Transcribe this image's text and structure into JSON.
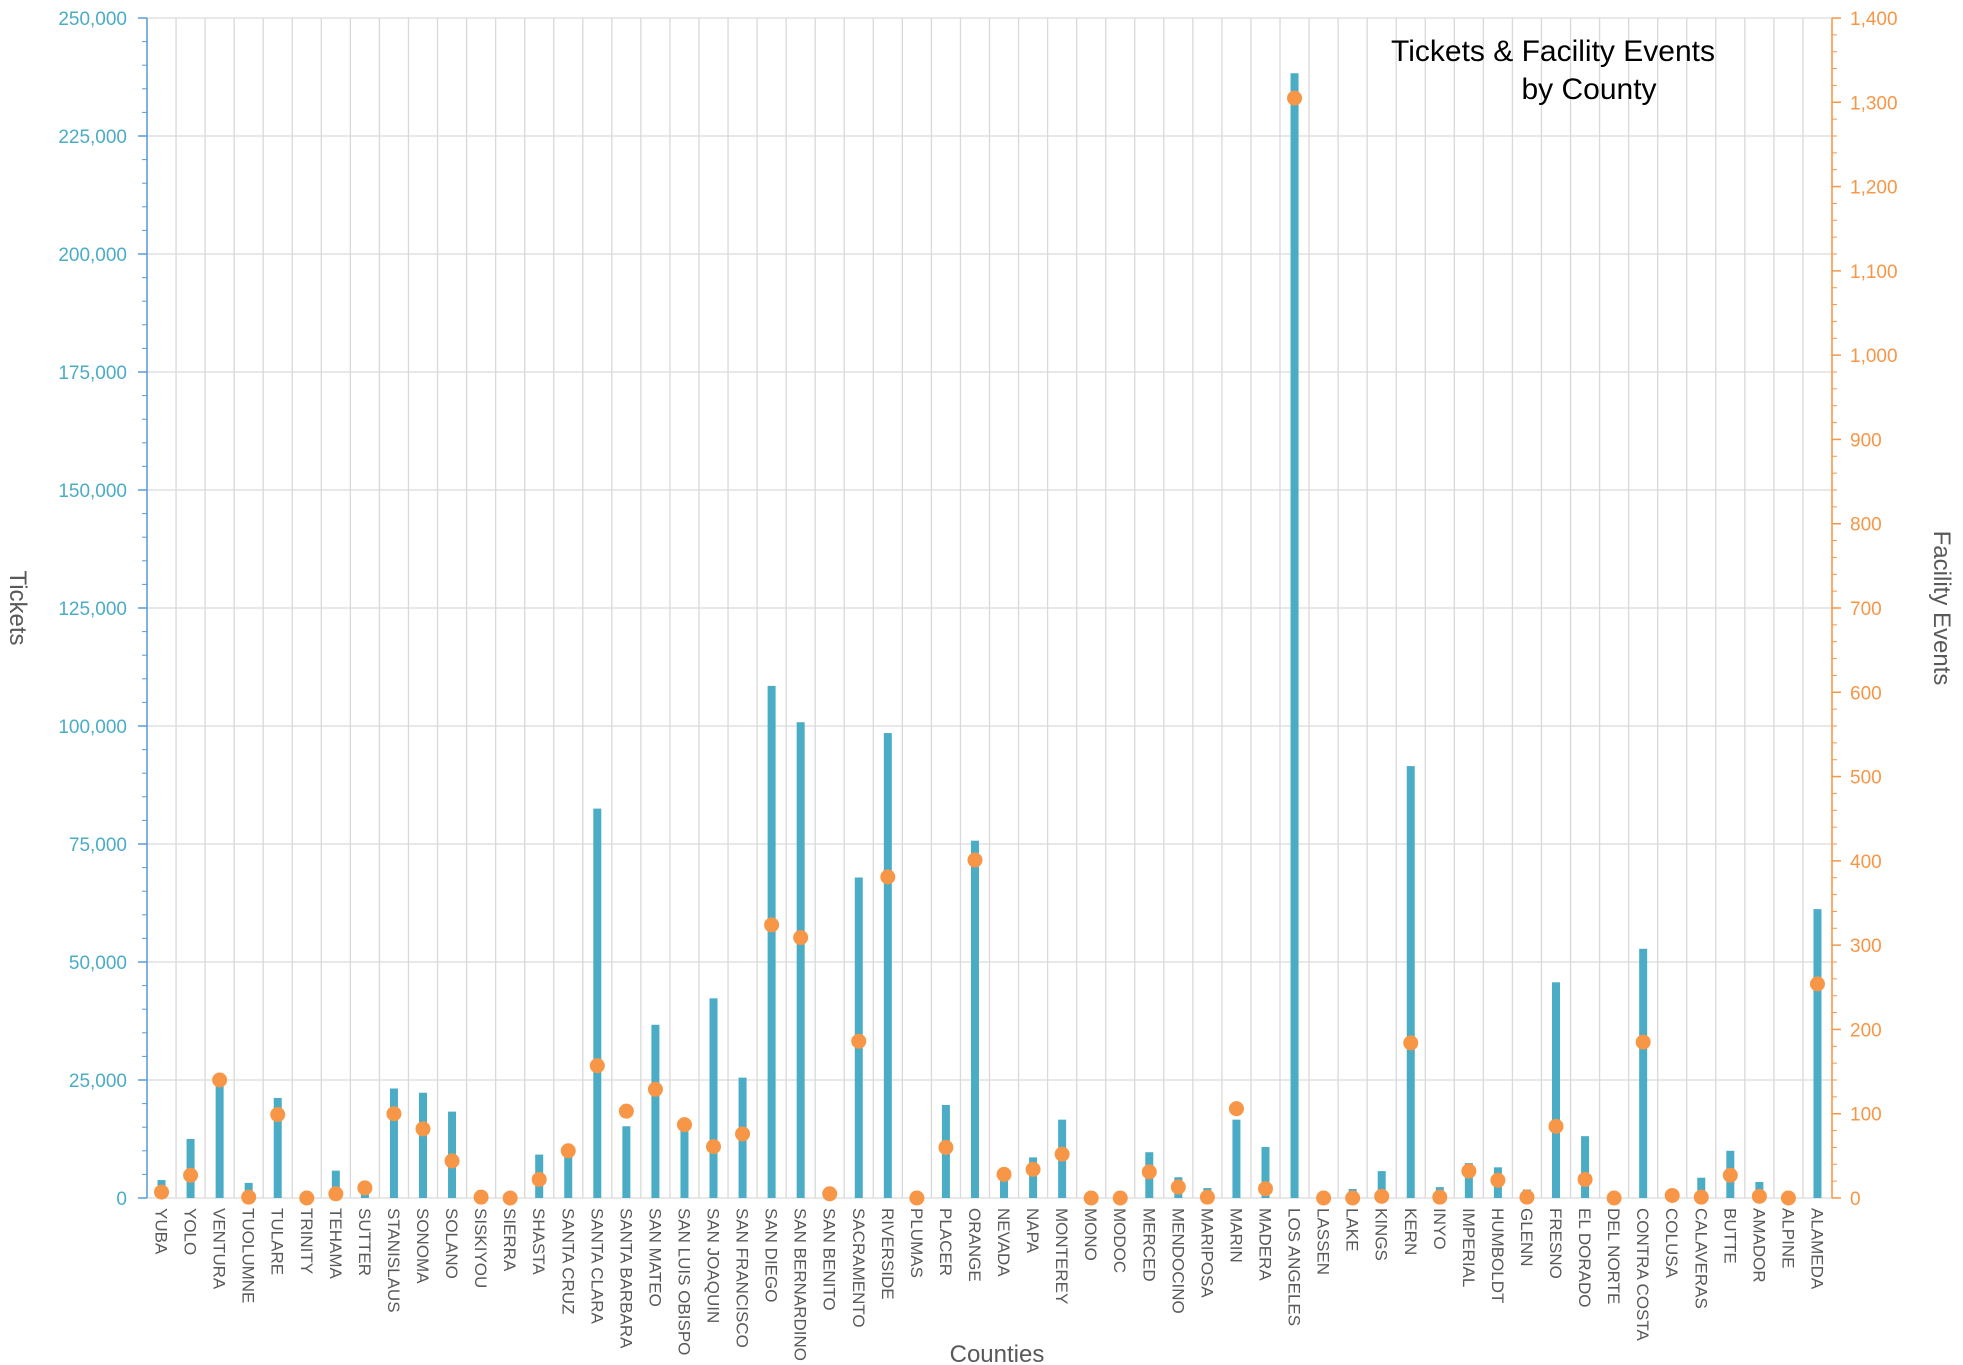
{
  "chart_data": {
    "type": "bar",
    "title_line1": "Tickets & Facility Events",
    "title_line2": "by County",
    "xlabel": "Counties",
    "ylabel_left": "Tickets",
    "ylabel_right": "Facility Events",
    "ylim_left": [
      0,
      250000
    ],
    "ylim_right": [
      0,
      1400
    ],
    "y_ticks_left": [
      "0",
      "25,000",
      "50,000",
      "75,000",
      "100,000",
      "125,000",
      "150,000",
      "175,000",
      "200,000",
      "225,000",
      "250,000"
    ],
    "y_ticks_right": [
      "0",
      "100",
      "200",
      "300",
      "400",
      "500",
      "600",
      "700",
      "800",
      "900",
      "1,000",
      "1,100",
      "1,200",
      "1,300",
      "1,400"
    ],
    "grid": true,
    "colors": {
      "tickets": "#4bacc6",
      "facility_events": "#f79646",
      "grid": "#d9d9d9"
    },
    "categories": [
      "YUBA",
      "YOLO",
      "VENTURA",
      "TUOLUMNE",
      "TULARE",
      "TRINITY",
      "TEHAMA",
      "SUTTER",
      "STANISLAUS",
      "SONOMA",
      "SOLANO",
      "SISKIYOU",
      "SIERRA",
      "SHASTA",
      "SANTA CRUZ",
      "SANTA CLARA",
      "SANTA BARBARA",
      "SAN MATEO",
      "SAN LUIS OBISPO",
      "SAN JOAQUIN",
      "SAN FRANCISCO",
      "SAN DIEGO",
      "SAN BERNARDINO",
      "SAN BENITO",
      "SACRAMENTO",
      "RIVERSIDE",
      "PLUMAS",
      "PLACER",
      "ORANGE",
      "NEVADA",
      "NAPA",
      "MONTEREY",
      "MONO",
      "MODOC",
      "MERCED",
      "MENDOCINO",
      "MARIPOSA",
      "MARIN",
      "MADERA",
      "LOS ANGELES",
      "LASSEN",
      "LAKE",
      "KINGS",
      "KERN",
      "INYO",
      "IMPERIAL",
      "HUMBOLDT",
      "GLENN",
      "FRESNO",
      "EL DORADO",
      "DEL NORTE",
      "CONTRA COSTA",
      "COLUSA",
      "CALAVERAS",
      "BUTTE",
      "AMADOR",
      "ALPINE",
      "ALAMEDA"
    ],
    "series": [
      {
        "name": "Tickets",
        "type": "bar",
        "axis": "left",
        "values": [
          3800,
          12500,
          25000,
          3200,
          21200,
          200,
          5800,
          2900,
          23200,
          22300,
          18300,
          1600,
          500,
          9200,
          9300,
          82500,
          15200,
          36700,
          15000,
          42300,
          25500,
          108500,
          100800,
          1000,
          67900,
          98500,
          600,
          19700,
          75700,
          3800,
          8600,
          16600,
          300,
          300,
          9700,
          4400,
          2100,
          16600,
          10800,
          238300,
          400,
          1900,
          5700,
          91500,
          2300,
          7400,
          6500,
          1800,
          45700,
          13100,
          700,
          52800,
          1200,
          4300,
          10000,
          3400,
          500,
          61200
        ]
      },
      {
        "name": "Facility Events",
        "type": "scatter",
        "axis": "right",
        "values": [
          7,
          27,
          140,
          1,
          99,
          0,
          5,
          12,
          100,
          82,
          44,
          1,
          0,
          22,
          56,
          157,
          103,
          129,
          87,
          61,
          76,
          324,
          309,
          5,
          186,
          381,
          0,
          60,
          401,
          28,
          34,
          52,
          0,
          0,
          31,
          13,
          1,
          106,
          11,
          1305,
          0,
          0,
          2,
          184,
          1,
          32,
          21,
          1,
          85,
          22,
          0,
          185,
          3,
          1,
          27,
          2,
          0,
          254
        ]
      }
    ]
  }
}
